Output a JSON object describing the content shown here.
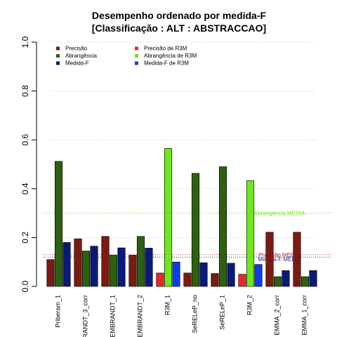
{
  "chart_data": {
    "type": "bar",
    "title_line1": "Desempenho ordenado por medida-F",
    "title_line2": "[Classificação : ALT : ABSTRACCAO]",
    "xlabel": "",
    "ylabel": "",
    "ylim": [
      0,
      1.0
    ],
    "yticks": [
      "0.0",
      "0.2",
      "0.4",
      "0.6",
      "0.8",
      "1.0"
    ],
    "ytick_values": [
      0,
      0.2,
      0.4,
      0.6,
      0.8,
      1.0
    ],
    "grid": "horizontal dotted",
    "legend_position": "top-left",
    "categories": [
      "Priberam_1",
      "RANDT_3_corr",
      "EMBRANDT_1",
      "EMBRANDT_2",
      "R3M_1",
      "SeRELeP_no",
      "SeRELeP_1",
      "R3M_2",
      "EMMA_2_corr",
      "EMMA_1_corr"
    ],
    "series": [
      {
        "name": "Precisão",
        "values": [
          0.11,
          0.195,
          0.205,
          0.128,
          0.055,
          0.055,
          0.053,
          0.05,
          0.222,
          0.222
        ]
      },
      {
        "name": "Abrangência",
        "values": [
          0.512,
          0.145,
          0.128,
          0.205,
          0.565,
          0.463,
          0.49,
          0.433,
          0.04,
          0.04
        ]
      },
      {
        "name": "Medida-F",
        "values": [
          0.18,
          0.165,
          0.158,
          0.157,
          0.1,
          0.097,
          0.095,
          0.09,
          0.065,
          0.065
        ]
      }
    ],
    "highlight_categories": [
      "R3M_1",
      "R3M_2"
    ],
    "colors": {
      "precisao": "#7a1a12",
      "abrangencia": "#2d6110",
      "medida_f": "#0a1a7a",
      "precisao_r3m": "#e8282a",
      "abrangencia_r3m": "#6ee81a",
      "medida_f_r3m": "#0a3cf0",
      "ref_abrangencia": "#6ee81a",
      "ref_precisao": "#b03a3a",
      "ref_medida_f": "#2a2aa0"
    },
    "legend": [
      {
        "label": "Precisão",
        "color": "#7a1a12"
      },
      {
        "label": "Abrangência",
        "color": "#2d6110"
      },
      {
        "label": "Medida-F",
        "color": "#0a1a7a"
      },
      {
        "label": "Precisão  de  R3M",
        "color": "#e8282a"
      },
      {
        "label": "Abrangência  de  R3M",
        "color": "#6ee81a"
      },
      {
        "label": "Medida-F  de  R3M",
        "color": "#0a3cf0"
      }
    ],
    "reference_lines": [
      {
        "label": "Abrangência MÉDIA",
        "value": 0.3,
        "color": "#6ee81a"
      },
      {
        "label": "Precisão MÉDIA",
        "value": 0.13,
        "color": "#b03a3a"
      },
      {
        "label": "Medida-F MÉDIA",
        "value": 0.12,
        "color": "#2a2aa0"
      }
    ]
  }
}
